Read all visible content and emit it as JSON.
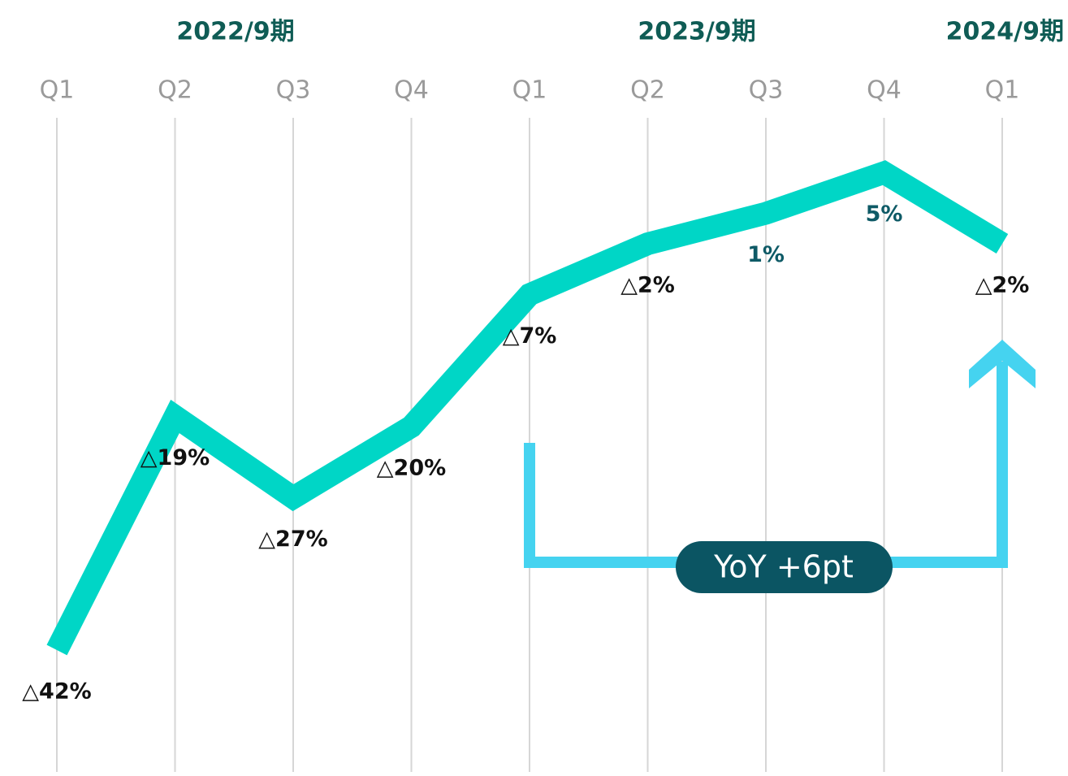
{
  "chart_data": {
    "type": "line",
    "year_labels": [
      "2022/9期",
      "2023/9期",
      "2024/9期"
    ],
    "year_color": "#0f5c55",
    "categories": [
      "Q1",
      "Q2",
      "Q3",
      "Q4",
      "Q1",
      "Q2",
      "Q3",
      "Q4",
      "Q1"
    ],
    "values": [
      -42,
      -19,
      -27,
      -20,
      -7,
      -2,
      1,
      5,
      -2
    ],
    "value_labels": [
      "△42%",
      "△19%",
      "△27%",
      "△20%",
      "△7%",
      "△2%",
      "1%",
      "5%",
      "△2%"
    ],
    "color": "#00d6c6",
    "label_colors": {
      "negative": "#111111",
      "positive": "#0e5a66"
    },
    "ylim": [
      -50,
      10
    ],
    "annotation": {
      "text": "YoY +6pt",
      "color": "#45d3f0",
      "box_color": "#0b5563"
    }
  }
}
